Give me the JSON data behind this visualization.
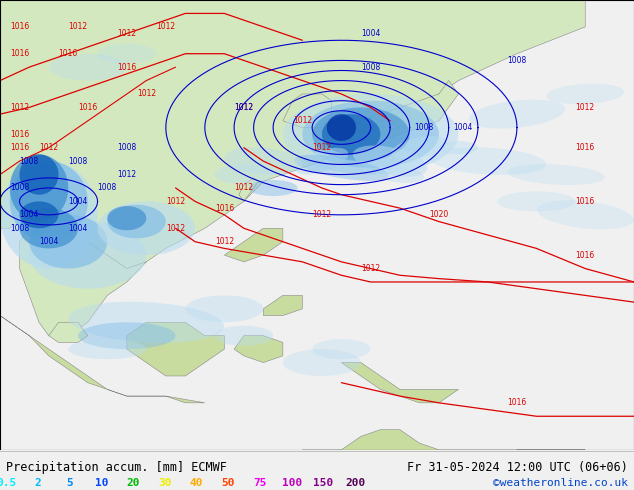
{
  "title_left": "Precipitation accum. [mm] ECMWF",
  "title_right": "Fr 31-05-2024 12:00 UTC (06+06)",
  "credit": "©weatheronline.co.uk",
  "legend_values": [
    "0.5",
    "2",
    "5",
    "10",
    "20",
    "30",
    "40",
    "50",
    "75",
    "100",
    "150",
    "200"
  ],
  "legend_colors": [
    "#00eeff",
    "#00bbff",
    "#0088ff",
    "#0044ff",
    "#00bb00",
    "#eeee00",
    "#ffaa00",
    "#ff4400",
    "#ee00ee",
    "#bb00bb",
    "#880088",
    "#550055"
  ],
  "bg_color": "#f0f0f0",
  "ocean_color": "#e8f4f8",
  "land_color": "#d4e8c0",
  "land_color2": "#c8dca0",
  "bottom_bar_color": "#e8e8e8",
  "title_fontsize": 8.5,
  "credit_fontsize": 8,
  "legend_fontsize": 8,
  "figsize": [
    6.34,
    4.9
  ],
  "dpi": 100,
  "red_isobar": "#dd0000",
  "blue_isobar": "#0000cc",
  "coast_color": "#888888",
  "border_color": "#888888"
}
